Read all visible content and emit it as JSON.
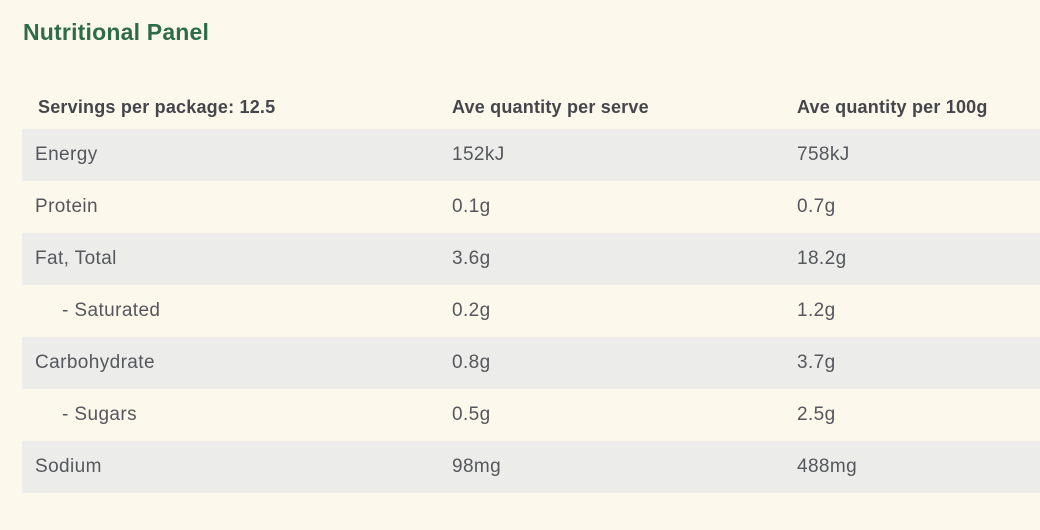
{
  "page": {
    "title": "Nutritional Panel"
  },
  "colors": {
    "background": "#FDF8EC",
    "row_stripe": "#ECEDEA",
    "title_green": "#2E6B4B",
    "header_text": "#45464B",
    "body_text": "#56575C"
  },
  "table": {
    "headers": [
      "Servings per package: 12.5",
      "Ave quantity per serve",
      "Ave quantity per 100g"
    ],
    "rows": [
      {
        "label": "Energy",
        "per_serve": "152kJ",
        "per_100g": "758kJ",
        "indent": false,
        "striped": true
      },
      {
        "label": "Protein",
        "per_serve": "0.1g",
        "per_100g": "0.7g",
        "indent": false,
        "striped": false
      },
      {
        "label": "Fat, Total",
        "per_serve": "3.6g",
        "per_100g": "18.2g",
        "indent": false,
        "striped": true
      },
      {
        "label": "- Saturated",
        "per_serve": "0.2g",
        "per_100g": "1.2g",
        "indent": true,
        "striped": false
      },
      {
        "label": "Carbohydrate",
        "per_serve": "0.8g",
        "per_100g": "3.7g",
        "indent": false,
        "striped": true
      },
      {
        "label": "- Sugars",
        "per_serve": "0.5g",
        "per_100g": "2.5g",
        "indent": true,
        "striped": false
      },
      {
        "label": "Sodium",
        "per_serve": "98mg",
        "per_100g": "488mg",
        "indent": false,
        "striped": true
      }
    ]
  }
}
